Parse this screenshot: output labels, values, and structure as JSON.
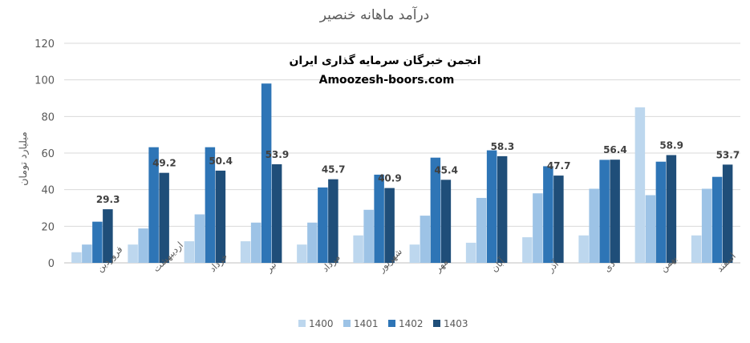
{
  "chart_data": {
    "type": "bar",
    "title": "درآمد ماهانه خنصیر",
    "ylabel": "میلیارد تومان",
    "xlabel": "",
    "ylim": [
      0,
      120
    ],
    "yticks": [
      0,
      20,
      40,
      60,
      80,
      100,
      120
    ],
    "grid": true,
    "legend_position": "bottom",
    "categories": [
      "فروردین",
      "اردیبهشت",
      "خرداد",
      "تیر",
      "مرداد",
      "شهریور",
      "مهر",
      "آبان",
      "آذر",
      "دی",
      "بهمن",
      "اسفند"
    ],
    "series": [
      {
        "name": "1400",
        "color": "#bdd7ee",
        "values": [
          5.8,
          10,
          11.8,
          11.8,
          10,
          15,
          10,
          11,
          14,
          15,
          85,
          15
        ]
      },
      {
        "name": "1401",
        "color": "#9dc3e6",
        "values": [
          10,
          18.8,
          26.5,
          22,
          22,
          29,
          25.8,
          35.5,
          38,
          40.5,
          37,
          40.5
        ]
      },
      {
        "name": "1402",
        "color": "#2e75b6",
        "values": [
          22.5,
          63.2,
          63.2,
          98,
          41.2,
          48.2,
          57.5,
          61.5,
          52.8,
          56.3,
          55.3,
          47
        ]
      },
      {
        "name": "1403",
        "color": "#1f4e79",
        "values": [
          29.3,
          49.2,
          50.4,
          53.9,
          45.7,
          40.9,
          45.4,
          58.3,
          47.7,
          56.4,
          58.9,
          53.7
        ]
      }
    ],
    "data_labels": {
      "series": "1403",
      "values": [
        "29.3",
        "49.2",
        "50.4",
        "53.9",
        "45.7",
        "40.9",
        "45.4",
        "58.3",
        "47.7",
        "56.4",
        "58.9",
        "53.7"
      ]
    }
  },
  "watermark": {
    "line1": "انجمن خبرگان سرمایه گذاری ایران",
    "line2": "Amoozesh-boors.com"
  }
}
